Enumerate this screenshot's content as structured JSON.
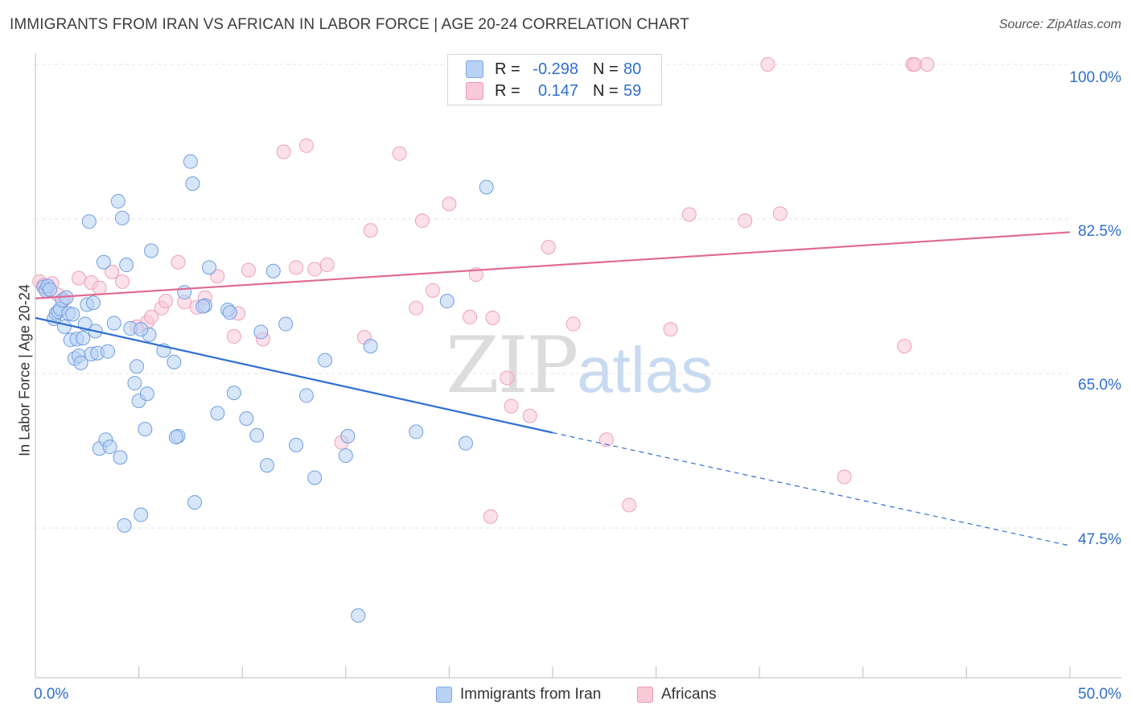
{
  "header": {
    "title": "IMMIGRANTS FROM IRAN VS AFRICAN IN LABOR FORCE | AGE 20-24 CORRELATION CHART",
    "source": "Source: ZipAtlas.com"
  },
  "watermark": {
    "zip": "ZIP",
    "atlas": "atlas"
  },
  "legend_top": [
    {
      "r_label": "R =",
      "r_value": "-0.298",
      "n_label": "N =",
      "n_value": "80"
    },
    {
      "r_label": "R =",
      "r_value": "0.147",
      "n_label": "N =",
      "n_value": "59"
    }
  ],
  "legend_bottom": {
    "series1": "Immigrants from Iran",
    "series2": "Africans"
  },
  "axis": {
    "x_min_label": "0.0%",
    "x_max_label": "50.0%",
    "y_label": "In Labor Force | Age 20-24"
  },
  "y_ticks": [
    "100.0%",
    "82.5%",
    "65.0%",
    "47.5%"
  ],
  "colors": {
    "blue": "#2f6fd0",
    "blue_fill": "#b8d2f6",
    "pink": "#e06a93",
    "pink_fill": "#fac9d8"
  },
  "chart_data": {
    "type": "scatter",
    "xlim": [
      0,
      50
    ],
    "ylim": [
      35,
      103
    ],
    "y_gridlines": [
      100.0,
      82.5,
      65.0,
      47.5
    ],
    "grid": true,
    "legend_placement": "top-center",
    "series": [
      {
        "name": "Immigrants from Iran",
        "color": "#2f6fd0",
        "trend": {
          "x0": 0,
          "y0": 71.3,
          "x1": 25,
          "y1": 58.3,
          "dash_to_x": 50,
          "dash_to_y": 45.5
        },
        "points": [
          [
            0.4,
            74.8
          ],
          [
            0.5,
            74.4
          ],
          [
            0.6,
            74.9
          ],
          [
            0.7,
            74.5
          ],
          [
            0.9,
            71.2
          ],
          [
            1.0,
            71.8
          ],
          [
            1.1,
            72.0
          ],
          [
            1.2,
            72.3
          ],
          [
            1.3,
            73.3
          ],
          [
            1.4,
            70.3
          ],
          [
            1.5,
            73.6
          ],
          [
            1.6,
            71.8
          ],
          [
            1.7,
            68.8
          ],
          [
            1.8,
            71.7
          ],
          [
            1.9,
            66.7
          ],
          [
            2.0,
            68.9
          ],
          [
            2.1,
            67.0
          ],
          [
            2.2,
            66.2
          ],
          [
            2.3,
            69.0
          ],
          [
            2.4,
            70.6
          ],
          [
            2.5,
            72.8
          ],
          [
            2.6,
            82.2
          ],
          [
            2.7,
            67.2
          ],
          [
            2.8,
            73.0
          ],
          [
            2.9,
            69.8
          ],
          [
            3.0,
            67.3
          ],
          [
            3.1,
            56.5
          ],
          [
            3.3,
            77.6
          ],
          [
            3.4,
            57.5
          ],
          [
            3.5,
            67.5
          ],
          [
            3.6,
            56.7
          ],
          [
            3.8,
            70.7
          ],
          [
            4.0,
            84.5
          ],
          [
            4.1,
            55.5
          ],
          [
            4.2,
            82.6
          ],
          [
            4.3,
            47.8
          ],
          [
            4.4,
            77.3
          ],
          [
            4.6,
            70.1
          ],
          [
            4.8,
            63.9
          ],
          [
            4.9,
            65.8
          ],
          [
            5.0,
            61.9
          ],
          [
            5.1,
            49.0
          ],
          [
            5.3,
            58.7
          ],
          [
            5.4,
            62.7
          ],
          [
            5.5,
            69.4
          ],
          [
            5.6,
            78.9
          ],
          [
            6.2,
            67.6
          ],
          [
            6.7,
            66.3
          ],
          [
            6.9,
            57.9
          ],
          [
            7.2,
            74.2
          ],
          [
            7.5,
            89.0
          ],
          [
            7.6,
            86.5
          ],
          [
            7.7,
            50.4
          ],
          [
            8.2,
            72.7
          ],
          [
            8.4,
            77.0
          ],
          [
            8.8,
            60.5
          ],
          [
            9.3,
            72.2
          ],
          [
            9.6,
            62.8
          ],
          [
            10.2,
            59.9
          ],
          [
            10.7,
            58.0
          ],
          [
            10.9,
            69.7
          ],
          [
            11.2,
            54.6
          ],
          [
            11.5,
            76.6
          ],
          [
            12.1,
            70.6
          ],
          [
            12.6,
            56.9
          ],
          [
            13.1,
            62.5
          ],
          [
            13.5,
            53.2
          ],
          [
            14.0,
            66.5
          ],
          [
            15.0,
            55.7
          ],
          [
            15.1,
            57.9
          ],
          [
            16.2,
            68.1
          ],
          [
            18.4,
            58.4
          ],
          [
            19.9,
            73.2
          ],
          [
            20.8,
            57.1
          ],
          [
            21.8,
            86.1
          ],
          [
            8.1,
            72.6
          ],
          [
            9.4,
            71.9
          ],
          [
            5.1,
            70.0
          ],
          [
            6.8,
            57.8
          ],
          [
            15.6,
            37.6
          ]
        ]
      },
      {
        "name": "Africans",
        "color": "#e06a93",
        "trend": {
          "x0": 0,
          "y0": 73.5,
          "x1": 50,
          "y1": 81.0
        },
        "points": [
          [
            0.2,
            75.4
          ],
          [
            0.4,
            75.0
          ],
          [
            0.5,
            74.6
          ],
          [
            0.8,
            75.2
          ],
          [
            1.1,
            73.9
          ],
          [
            1.4,
            73.4
          ],
          [
            2.1,
            75.8
          ],
          [
            2.7,
            75.3
          ],
          [
            3.1,
            74.7
          ],
          [
            3.7,
            76.5
          ],
          [
            4.2,
            75.4
          ],
          [
            4.9,
            70.3
          ],
          [
            5.4,
            70.8
          ],
          [
            5.6,
            71.4
          ],
          [
            6.1,
            72.4
          ],
          [
            6.3,
            73.2
          ],
          [
            6.9,
            77.6
          ],
          [
            7.2,
            73.1
          ],
          [
            7.8,
            72.5
          ],
          [
            8.2,
            73.6
          ],
          [
            8.8,
            76.0
          ],
          [
            9.6,
            69.2
          ],
          [
            9.8,
            71.8
          ],
          [
            10.3,
            76.7
          ],
          [
            11.0,
            68.9
          ],
          [
            12.0,
            90.1
          ],
          [
            12.6,
            77.0
          ],
          [
            13.1,
            90.8
          ],
          [
            13.5,
            76.8
          ],
          [
            14.1,
            77.3
          ],
          [
            14.8,
            57.2
          ],
          [
            15.9,
            69.1
          ],
          [
            16.2,
            81.2
          ],
          [
            17.6,
            89.9
          ],
          [
            18.4,
            72.4
          ],
          [
            18.7,
            82.3
          ],
          [
            19.2,
            74.4
          ],
          [
            20.0,
            84.2
          ],
          [
            21.0,
            71.4
          ],
          [
            21.3,
            76.2
          ],
          [
            22.1,
            71.3
          ],
          [
            22.8,
            64.5
          ],
          [
            23.0,
            61.3
          ],
          [
            23.9,
            60.2
          ],
          [
            24.8,
            79.3
          ],
          [
            26.0,
            70.6
          ],
          [
            27.6,
            57.5
          ],
          [
            28.7,
            50.1
          ],
          [
            30.7,
            70.0
          ],
          [
            31.6,
            83.0
          ],
          [
            34.3,
            82.3
          ],
          [
            35.4,
            100.0
          ],
          [
            36.0,
            83.1
          ],
          [
            39.1,
            53.3
          ],
          [
            42.0,
            68.1
          ],
          [
            42.4,
            100.0
          ],
          [
            42.5,
            100.0
          ],
          [
            43.1,
            100.0
          ],
          [
            22.0,
            48.8
          ]
        ]
      }
    ]
  }
}
